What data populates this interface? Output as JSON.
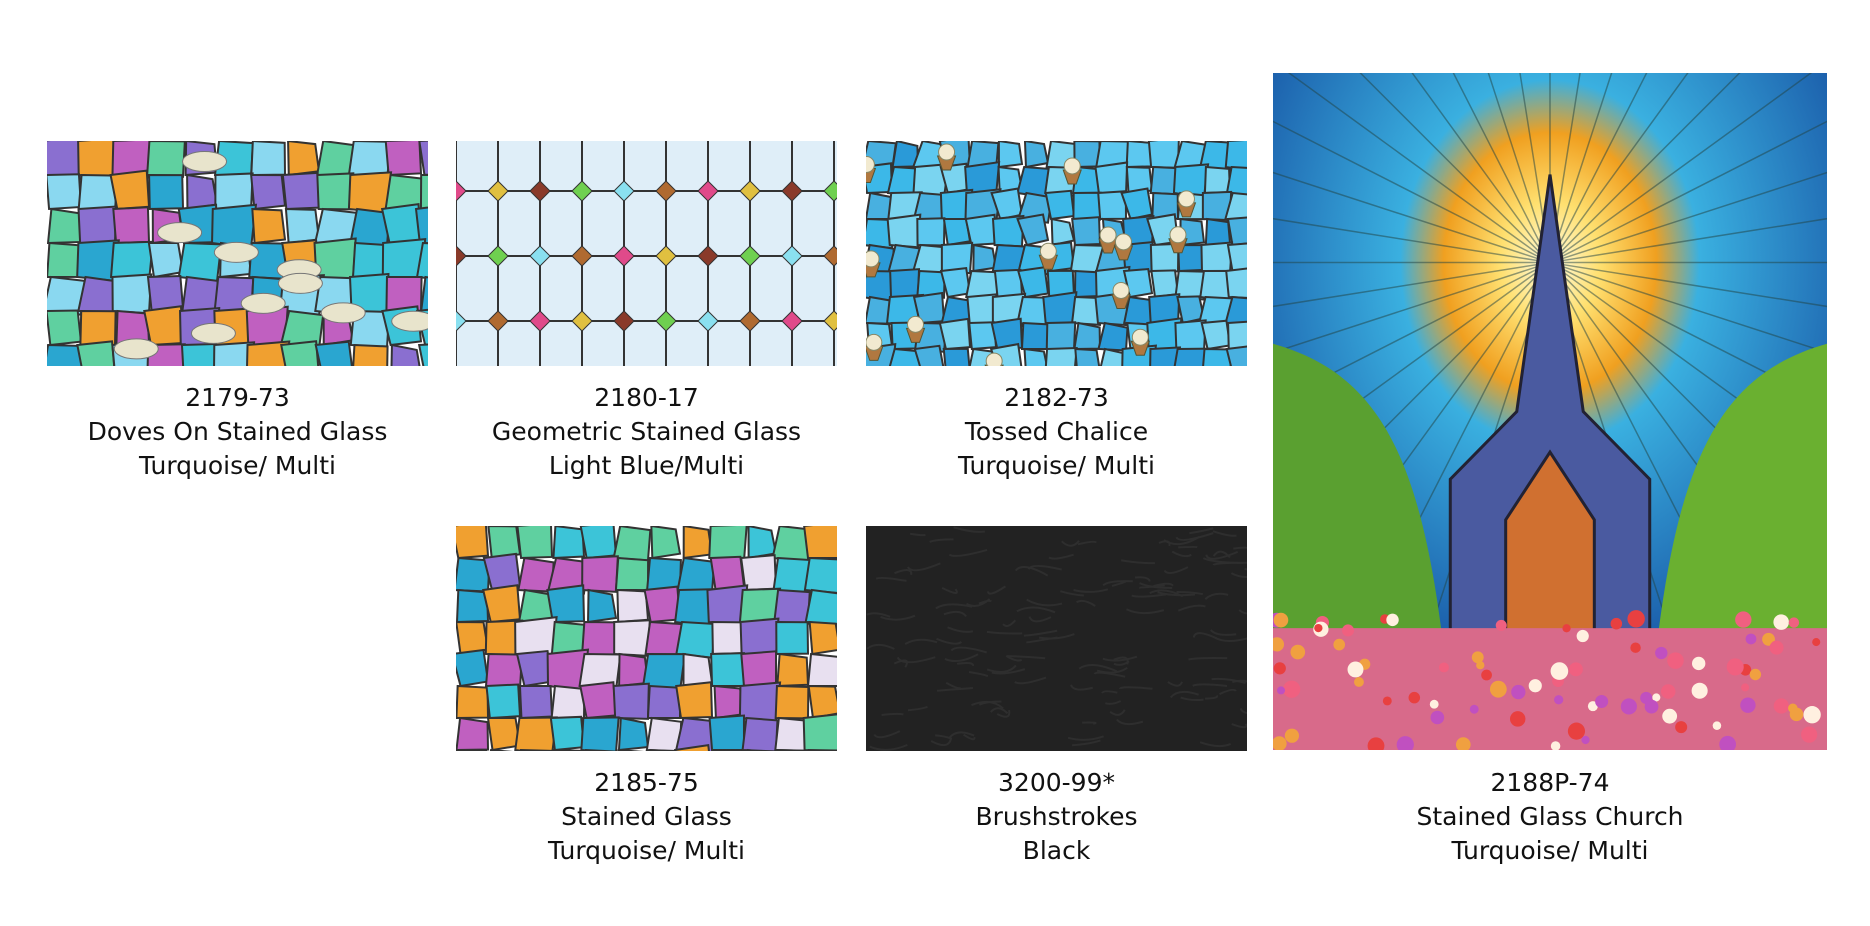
{
  "items": [
    {
      "code": "2179-73",
      "name": "Doves On Stained Glass",
      "color": "Turquoise/ Multi"
    },
    {
      "code": "2180-17",
      "name": "Geometric Stained Glass",
      "color": "Light Blue/Multi"
    },
    {
      "code": "2182-73",
      "name": "Tossed Chalice",
      "color": "Turquoise/ Multi"
    },
    {
      "code": "2188P-74",
      "name": "Stained Glass Church",
      "color": "Turquoise/ Multi"
    },
    {
      "code": "2185-75",
      "name": "Stained Glass",
      "color": "Turquoise/ Multi"
    },
    {
      "code": "3200-99*",
      "name": "Brushstrokes",
      "color": "Black"
    }
  ]
}
